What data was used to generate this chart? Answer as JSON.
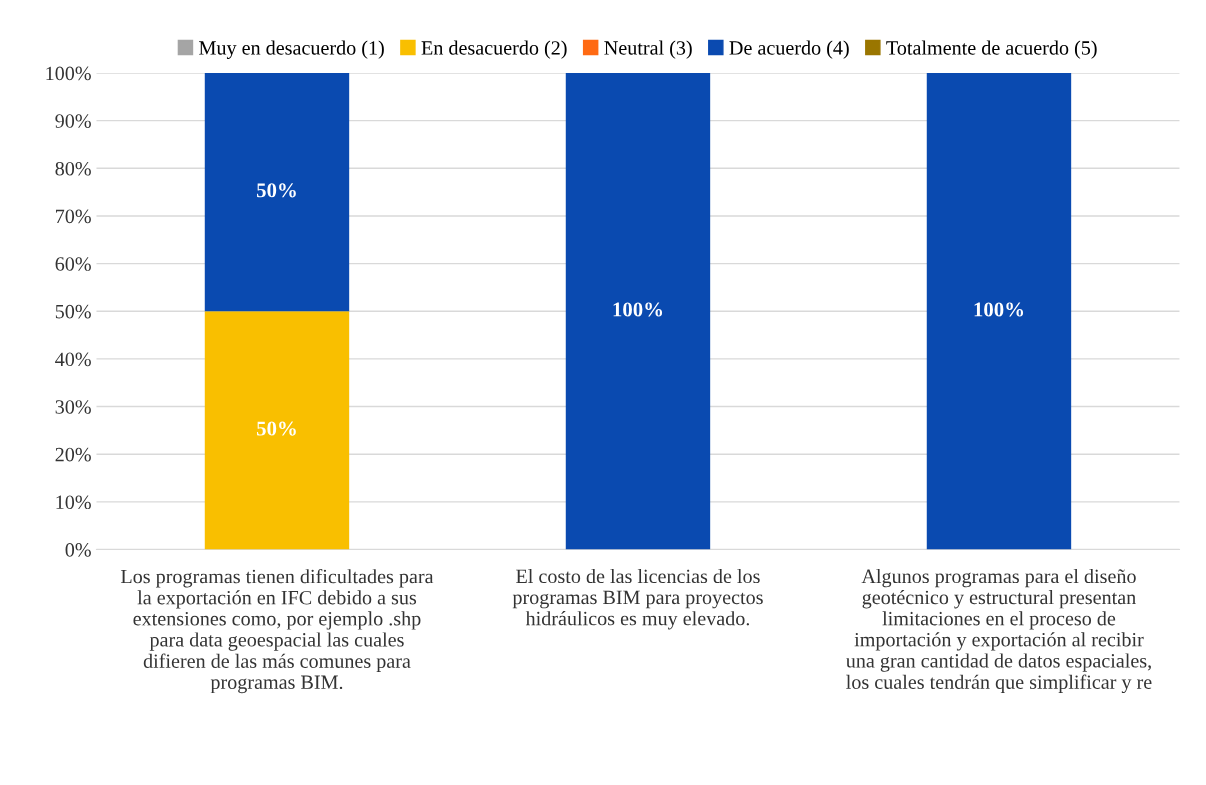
{
  "chart_data": {
    "type": "bar",
    "stacked": true,
    "categories": [
      "Los programas tienen dificultades para\nla exportación en IFC debido a sus\nextensiones como, por ejemplo .shp\npara data geoespacial las cuales\ndifieren de las más comunes para\nprogramas BIM.",
      "El costo de las licencias de los\nprogramas BIM para proyectos\nhidráulicos es muy elevado.",
      "Algunos programas para el diseño\ngeotécnico y estructural presentan\nlimitaciones en el proceso de\nimportación y exportación al recibir\nuna gran cantidad de datos espaciales,\nlos cuales tendrán que simplificar y re"
    ],
    "series": [
      {
        "name": "Muy en desacuerdo (1)",
        "color": "#a5a5a5",
        "values": [
          0,
          0,
          0
        ],
        "value_labels": [
          null,
          null,
          null
        ]
      },
      {
        "name": "En desacuerdo (2)",
        "color": "#f9bf00",
        "values": [
          50,
          0,
          0
        ],
        "value_labels": [
          "50%",
          null,
          null
        ]
      },
      {
        "name": "Neutral (3)",
        "color": "#ff6a13",
        "values": [
          0,
          0,
          0
        ],
        "value_labels": [
          null,
          null,
          null
        ]
      },
      {
        "name": "De acuerdo (4)",
        "color": "#0a4ab0",
        "values": [
          50,
          100,
          100
        ],
        "value_labels": [
          "50%",
          "100%",
          "100%"
        ]
      },
      {
        "name": "Totalmente de acuerdo (5)",
        "color": "#9a7600",
        "values": [
          0,
          0,
          0
        ],
        "value_labels": [
          null,
          null,
          null
        ]
      }
    ],
    "ylim": [
      0,
      100
    ],
    "yticks": [
      {
        "value": 0,
        "label": "0%"
      },
      {
        "value": 10,
        "label": "10%"
      },
      {
        "value": 20,
        "label": "20%"
      },
      {
        "value": 30,
        "label": "30%"
      },
      {
        "value": 40,
        "label": "40%"
      },
      {
        "value": 50,
        "label": "50%"
      },
      {
        "value": 60,
        "label": "60%"
      },
      {
        "value": 70,
        "label": "70%"
      },
      {
        "value": 80,
        "label": "80%"
      },
      {
        "value": 90,
        "label": "90%"
      },
      {
        "value": 100,
        "label": "100%"
      }
    ],
    "grid": "y",
    "legend": "top"
  }
}
